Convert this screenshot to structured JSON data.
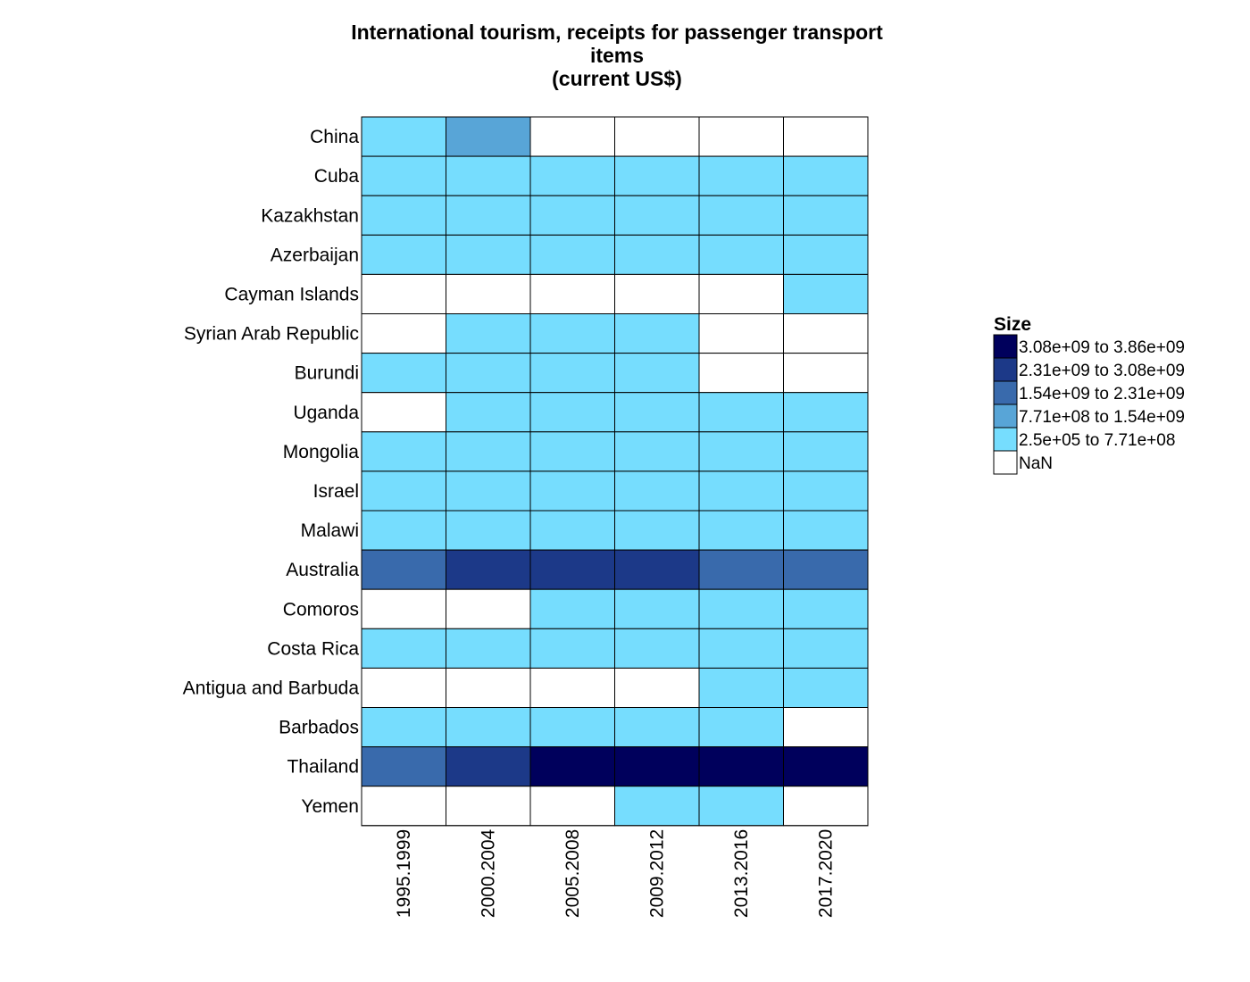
{
  "chart_data": {
    "type": "heatmap",
    "title": [
      "International tourism, receipts for passenger transport",
      "items",
      "(current US$)"
    ],
    "columns": [
      "1995.1999",
      "2000.2004",
      "2005.2008",
      "2009.2012",
      "2013.2016",
      "2017.2020"
    ],
    "rows": [
      "China",
      "Cuba",
      "Kazakhstan",
      "Azerbaijan",
      "Cayman Islands",
      "Syrian Arab Republic",
      "Burundi",
      "Uganda",
      "Mongolia",
      "Israel",
      "Malawi",
      "Australia",
      "Comoros",
      "Costa Rica",
      "Antigua and Barbuda",
      "Barbados",
      "Thailand",
      "Yemen"
    ],
    "legend": {
      "title": "Size",
      "position": "right",
      "bins": [
        {
          "label": "3.08e+09 to 3.86e+09",
          "color": "#00005c"
        },
        {
          "label": "2.31e+09 to 3.08e+09",
          "color": "#1c3988"
        },
        {
          "label": "1.54e+09 to 2.31e+09",
          "color": "#396aac"
        },
        {
          "label": "7.71e+08 to 1.54e+09",
          "color": "#58a5d7"
        },
        {
          "label": "2.5e+05 to 7.71e+08",
          "color": "#76ddfe"
        },
        {
          "label": "NaN",
          "color": "#ffffff"
        }
      ]
    },
    "cells": [
      [
        4,
        3,
        5,
        5,
        5,
        5
      ],
      [
        4,
        4,
        4,
        4,
        4,
        4
      ],
      [
        4,
        4,
        4,
        4,
        4,
        4
      ],
      [
        4,
        4,
        4,
        4,
        4,
        4
      ],
      [
        5,
        5,
        5,
        5,
        5,
        4
      ],
      [
        5,
        4,
        4,
        4,
        5,
        5
      ],
      [
        4,
        4,
        4,
        4,
        5,
        5
      ],
      [
        5,
        4,
        4,
        4,
        4,
        4
      ],
      [
        4,
        4,
        4,
        4,
        4,
        4
      ],
      [
        4,
        4,
        4,
        4,
        4,
        4
      ],
      [
        4,
        4,
        4,
        4,
        4,
        4
      ],
      [
        2,
        1,
        1,
        1,
        2,
        2
      ],
      [
        5,
        5,
        4,
        4,
        4,
        4
      ],
      [
        4,
        4,
        4,
        4,
        4,
        4
      ],
      [
        5,
        5,
        5,
        5,
        4,
        4
      ],
      [
        4,
        4,
        4,
        4,
        4,
        5
      ],
      [
        2,
        1,
        0,
        0,
        0,
        0
      ],
      [
        5,
        5,
        5,
        4,
        4,
        5
      ]
    ]
  }
}
